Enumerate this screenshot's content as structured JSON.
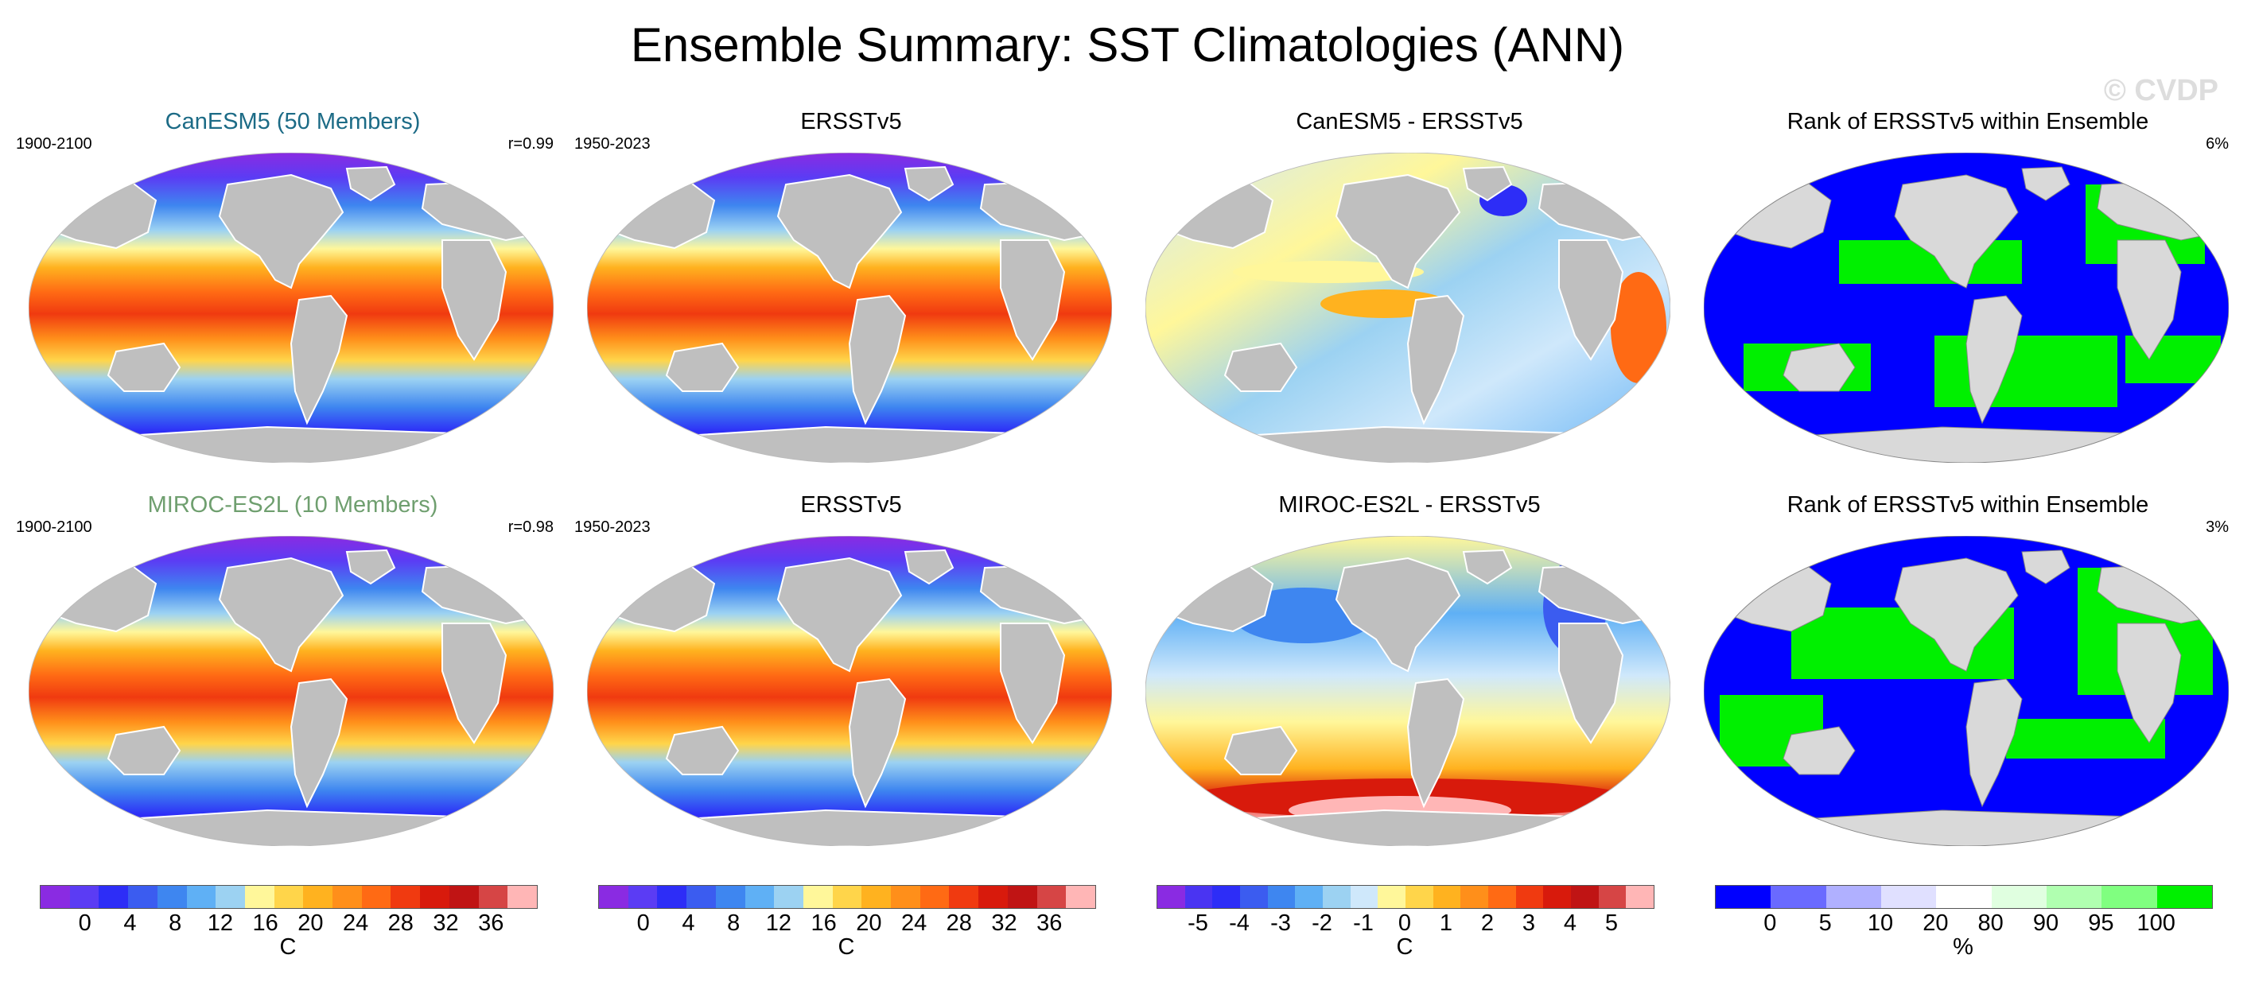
{
  "title": "Ensemble Summary: SST Climatologies (ANN)",
  "watermark": "© CVDP",
  "colors": {
    "land": "#bfbfbf",
    "cold": "#9a3cf2",
    "warm": "#f55a1e",
    "model1_title": "#1c6b86",
    "model2_title": "#6f9f6f",
    "rank_low": "#0000ff",
    "rank_high": "#00f000"
  },
  "row1": {
    "p1": {
      "title": "CanESM5 (50 Members)",
      "left": "1900-2100",
      "right": "r=0.99"
    },
    "p2": {
      "title": "ERSSTv5",
      "left": "1950-2023"
    },
    "p3": {
      "title": "CanESM5 - ERSSTv5"
    },
    "p4": {
      "title": "Rank of ERSSTv5 within Ensemble",
      "right": "6%"
    }
  },
  "row2": {
    "p1": {
      "title": "MIROC-ES2L (10 Members)",
      "left": "1900-2100",
      "right": "r=0.98"
    },
    "p2": {
      "title": "ERSSTv5",
      "left": "1950-2023"
    },
    "p3": {
      "title": "MIROC-ES2L - ERSSTv5"
    },
    "p4": {
      "title": "Rank of ERSSTv5 within Ensemble",
      "right": "3%"
    }
  },
  "colorbars": {
    "sst": {
      "unit": "C",
      "ticks": [
        "0",
        "4",
        "8",
        "12",
        "16",
        "20",
        "24",
        "28",
        "32",
        "36"
      ],
      "colors": [
        "#8a2be2",
        "#5b3cf4",
        "#2d2df7",
        "#3b5cf0",
        "#3e86f0",
        "#5fb0f5",
        "#9cd2f2",
        "#fff79a",
        "#ffd54a",
        "#ffb21f",
        "#ff8f1a",
        "#ff6a14",
        "#f03a10",
        "#d81a0c",
        "#c01414",
        "#d64545",
        "#ffb6b6"
      ]
    },
    "diff": {
      "unit": "C",
      "ticks": [
        "-5",
        "-4",
        "-3",
        "-2",
        "-1",
        "0",
        "1",
        "2",
        "3",
        "4",
        "5"
      ],
      "colors": [
        "#8a2be2",
        "#4a34f2",
        "#2d2df7",
        "#3b5cf0",
        "#3e86f0",
        "#5fb0f5",
        "#9cd2f2",
        "#cfe8fb",
        "#fff79a",
        "#ffd54a",
        "#ffb21f",
        "#ff8f1a",
        "#ff6a14",
        "#f03a10",
        "#d81a0c",
        "#c01414",
        "#d64545",
        "#ffb6b6"
      ]
    },
    "rank": {
      "unit": "%",
      "ticks": [
        "0",
        "5",
        "10",
        "20",
        "80",
        "90",
        "95",
        "100"
      ],
      "colors": [
        "#0000ff",
        "#6a6aff",
        "#b0b0ff",
        "#e0e0ff",
        "#ffffff",
        "#e0ffe0",
        "#b0ffb0",
        "#80ff80",
        "#00f000"
      ]
    }
  }
}
